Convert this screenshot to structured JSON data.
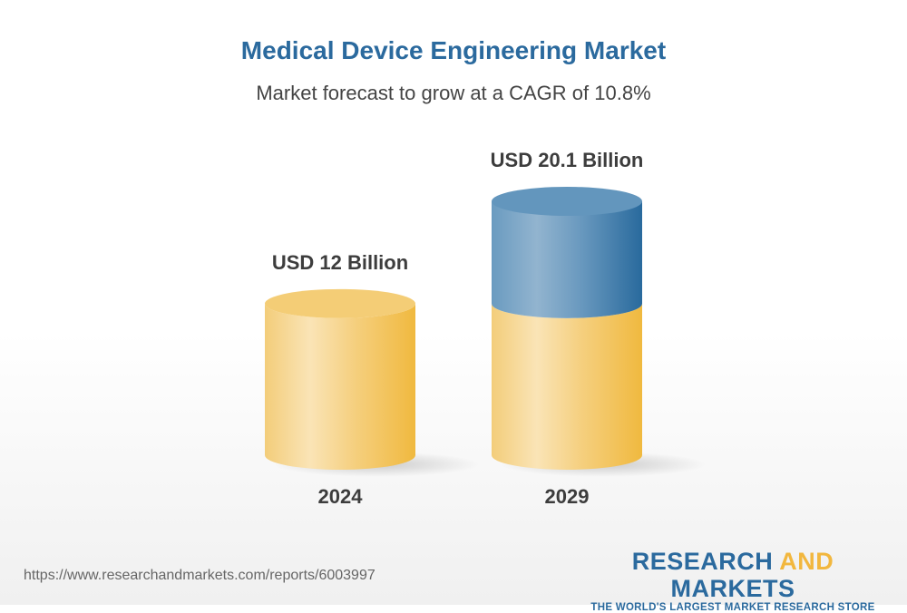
{
  "header": {
    "title": "Medical Device Engineering Market",
    "subtitle": "Market forecast to grow at a CAGR of 10.8%"
  },
  "chart_data": {
    "type": "bar",
    "style": "3d-cylinder",
    "title": "Medical Device Engineering Market",
    "subtitle": "Market forecast to grow at a CAGR of 10.8%",
    "categories": [
      "2024",
      "2029"
    ],
    "values": [
      12,
      20.1
    ],
    "data_labels": [
      "USD 12 Billion",
      "USD 20.1 Billion"
    ],
    "unit": "USD Billion",
    "grid": false,
    "colors": {
      "base": "#f2b73e",
      "growth": "#2b6a9e"
    }
  },
  "footer": {
    "url": "https://www.researchandmarkets.com/reports/6003997",
    "logo": {
      "word1": "RESEARCH",
      "word2": "AND",
      "word3": "MARKETS",
      "tagline": "THE WORLD'S LARGEST MARKET RESEARCH STORE"
    }
  }
}
